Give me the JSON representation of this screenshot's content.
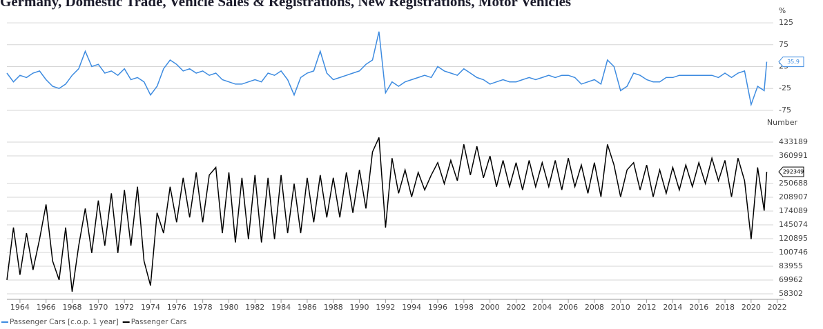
{
  "chart_data": [
    {
      "type": "line",
      "title": "Germany, Domestic Trade, Vehicle Sales & Registrations, New Registrations, Motor Vehicles",
      "y_unit": "%",
      "x": [
        1963,
        1963.5,
        1964,
        1964.5,
        1965,
        1965.5,
        1966,
        1966.5,
        1967,
        1967.5,
        1968,
        1968.5,
        1969,
        1969.5,
        1970,
        1970.5,
        1971,
        1971.5,
        1972,
        1972.5,
        1973,
        1973.5,
        1974,
        1974.5,
        1975,
        1975.5,
        1976,
        1976.5,
        1977,
        1977.5,
        1978,
        1978.5,
        1979,
        1979.5,
        1980,
        1980.5,
        1981,
        1981.5,
        1982,
        1982.5,
        1983,
        1983.5,
        1984,
        1984.5,
        1985,
        1985.5,
        1986,
        1986.5,
        1987,
        1987.5,
        1988,
        1988.5,
        1989,
        1989.5,
        1990,
        1990.5,
        1991,
        1991.5,
        1992,
        1992.5,
        1993,
        1993.5,
        1994,
        1994.5,
        1995,
        1995.5,
        1996,
        1996.5,
        1997,
        1997.5,
        1998,
        1998.5,
        1999,
        1999.5,
        2000,
        2000.5,
        2001,
        2001.5,
        2002,
        2002.5,
        2003,
        2003.5,
        2004,
        2004.5,
        2005,
        2005.5,
        2006,
        2006.5,
        2007,
        2007.5,
        2008,
        2008.5,
        2009,
        2009.5,
        2010,
        2010.5,
        2011,
        2011.5,
        2012,
        2012.5,
        2013,
        2013.5,
        2014,
        2014.5,
        2015,
        2015.5,
        2016,
        2016.5,
        2017,
        2017.5,
        2018,
        2018.5,
        2019,
        2019.5,
        2020,
        2020.5,
        2021,
        2021.2
      ],
      "xlim": [
        1963.0,
        2021.7
      ],
      "ylim": [
        -94,
        133
      ],
      "yticks": [
        125,
        75,
        25,
        -25,
        -75
      ],
      "grid": true,
      "series": [
        {
          "name": "Passenger Cars [c.o.p. 1 year]",
          "color": "#3d8be0",
          "values": [
            10,
            -10,
            5,
            0,
            10,
            15,
            -5,
            -20,
            -25,
            -15,
            5,
            20,
            60,
            25,
            30,
            10,
            15,
            5,
            20,
            -5,
            0,
            -10,
            -40,
            -20,
            20,
            40,
            30,
            15,
            20,
            10,
            15,
            5,
            10,
            -5,
            -10,
            -15,
            -15,
            -10,
            -5,
            -10,
            10,
            5,
            15,
            -5,
            -40,
            0,
            10,
            15,
            60,
            10,
            -5,
            0,
            5,
            10,
            15,
            30,
            40,
            105,
            -35,
            -10,
            -20,
            -10,
            -5,
            0,
            5,
            0,
            25,
            15,
            10,
            5,
            20,
            10,
            0,
            -5,
            -15,
            -10,
            -5,
            -10,
            -10,
            -5,
            0,
            -5,
            0,
            5,
            0,
            5,
            5,
            0,
            -15,
            -10,
            -5,
            -15,
            40,
            25,
            -30,
            -20,
            10,
            5,
            -5,
            -10,
            -10,
            0,
            0,
            5,
            5,
            5,
            5,
            5,
            5,
            0,
            10,
            0,
            10,
            15,
            -62,
            -20,
            -30,
            35.9
          ],
          "last_value": 35.9,
          "last_value_label": "35,9"
        }
      ]
    },
    {
      "type": "line",
      "y_unit": "Number",
      "x": [
        1963,
        1963.5,
        1964,
        1964.5,
        1965,
        1965.5,
        1966,
        1966.5,
        1967,
        1967.5,
        1968,
        1968.5,
        1969,
        1969.5,
        1970,
        1970.5,
        1971,
        1971.5,
        1972,
        1972.5,
        1973,
        1973.5,
        1974,
        1974.5,
        1975,
        1975.5,
        1976,
        1976.5,
        1977,
        1977.5,
        1978,
        1978.5,
        1979,
        1979.5,
        1980,
        1980.5,
        1981,
        1981.5,
        1982,
        1982.5,
        1983,
        1983.5,
        1984,
        1984.5,
        1985,
        1985.5,
        1986,
        1986.5,
        1987,
        1987.5,
        1988,
        1988.5,
        1989,
        1989.5,
        1990,
        1990.5,
        1991,
        1991.5,
        1992,
        1992.5,
        1993,
        1993.5,
        1994,
        1994.5,
        1995,
        1995.5,
        1996,
        1996.5,
        1997,
        1997.5,
        1998,
        1998.5,
        1999,
        1999.5,
        2000,
        2000.5,
        2001,
        2001.5,
        2002,
        2002.5,
        2003,
        2003.5,
        2004,
        2004.5,
        2005,
        2005.5,
        2006,
        2006.5,
        2007,
        2007.5,
        2008,
        2008.5,
        2009,
        2009.5,
        2010,
        2010.5,
        2011,
        2011.5,
        2012,
        2012.5,
        2013,
        2013.5,
        2014,
        2014.5,
        2015,
        2015.5,
        2016,
        2016.5,
        2017,
        2017.5,
        2018,
        2018.5,
        2019,
        2019.5,
        2020,
        2020.5,
        2021,
        2021.2
      ],
      "xlim": [
        1963.0,
        2021.7
      ],
      "xticks": [
        1964,
        1966,
        1968,
        1970,
        1972,
        1974,
        1976,
        1978,
        1980,
        1982,
        1984,
        1986,
        1988,
        1990,
        1992,
        1994,
        1996,
        1998,
        2000,
        2002,
        2004,
        2006,
        2008,
        2010,
        2012,
        2014,
        2016,
        2018,
        2020,
        2022
      ],
      "ylim": [
        54700,
        478600
      ],
      "log_scale": true,
      "yticks": [
        433189,
        360991,
        250688,
        208907,
        174089,
        145074,
        120895,
        100746,
        83955,
        69962,
        58302
      ],
      "grid": true,
      "series": [
        {
          "name": "Passenger Cars",
          "color": "#000000",
          "values": [
            70000,
            140000,
            75000,
            130000,
            80000,
            120000,
            190000,
            90000,
            70000,
            140000,
            60000,
            110000,
            180000,
            100000,
            200000,
            110000,
            220000,
            100000,
            230000,
            110000,
            240000,
            90000,
            65000,
            170000,
            130000,
            240000,
            150000,
            270000,
            160000,
            290000,
            150000,
            280000,
            310000,
            130000,
            290000,
            115000,
            270000,
            120000,
            280000,
            115000,
            270000,
            120000,
            280000,
            130000,
            250000,
            130000,
            270000,
            150000,
            280000,
            160000,
            270000,
            160000,
            290000,
            170000,
            300000,
            180000,
            380000,
            460000,
            140000,
            350000,
            220000,
            300000,
            210000,
            290000,
            230000,
            280000,
            330000,
            250000,
            340000,
            260000,
            420000,
            280000,
            410000,
            270000,
            360000,
            240000,
            340000,
            240000,
            330000,
            230000,
            340000,
            240000,
            330000,
            240000,
            340000,
            230000,
            350000,
            240000,
            320000,
            220000,
            330000,
            210000,
            420000,
            320000,
            210000,
            300000,
            330000,
            230000,
            320000,
            210000,
            300000,
            220000,
            310000,
            230000,
            320000,
            240000,
            330000,
            250000,
            350000,
            260000,
            340000,
            210000,
            350000,
            260000,
            120000,
            310000,
            175000,
            292349
          ],
          "last_value": 292349,
          "last_value_label": "292349"
        }
      ]
    }
  ]
}
